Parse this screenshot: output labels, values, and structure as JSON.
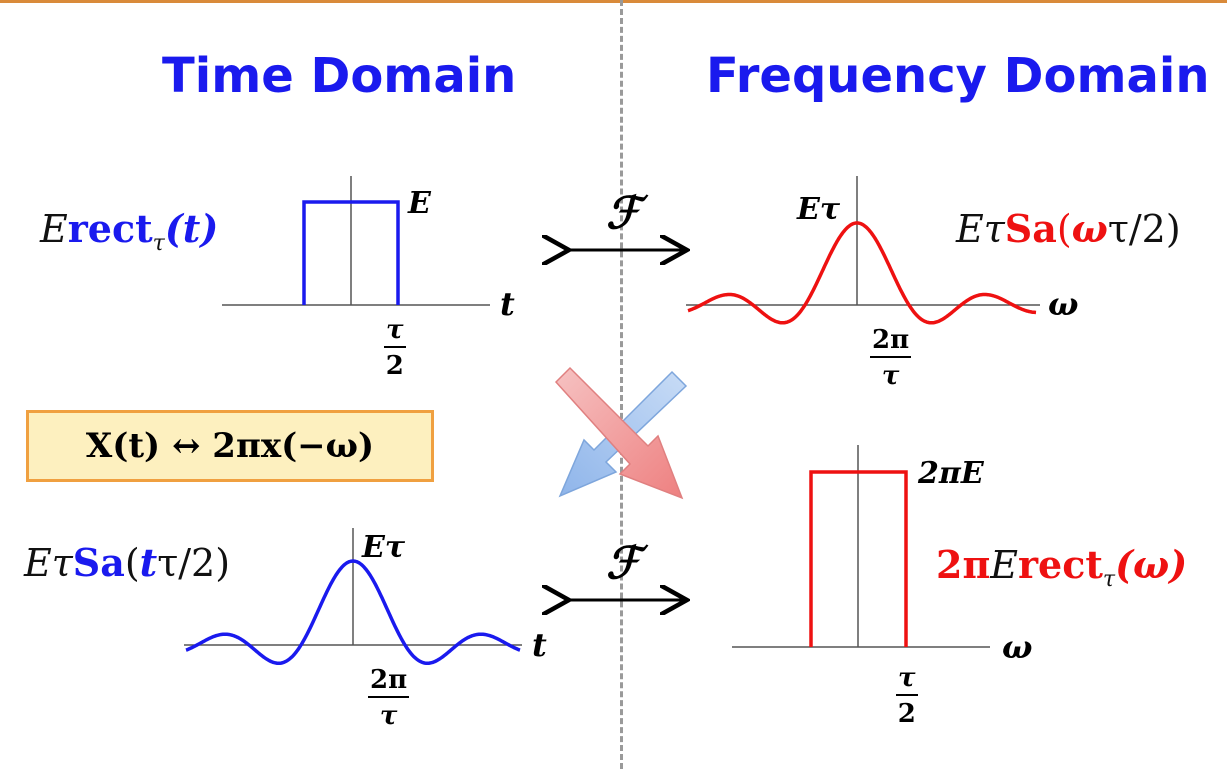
{
  "headings": {
    "time": "Time Domain",
    "frequency": "Frequency Domain"
  },
  "top_left": {
    "func_prefix": "E",
    "func_name": "rect",
    "func_sub": "τ",
    "func_arg": "(t)",
    "peak_label": "E",
    "axis_label": "t",
    "tick_num": "τ",
    "tick_den": "2"
  },
  "top_right": {
    "func_prefix": "Eτ",
    "func_name": "Sa",
    "func_arg_open": "(",
    "func_arg_var": "ω",
    "func_arg_rest": "τ/2)",
    "peak_label": "Eτ",
    "axis_label": "ω",
    "tick_num": "2π",
    "tick_den": "τ"
  },
  "bottom_left": {
    "func_prefix": "Eτ",
    "func_name": "Sa",
    "func_arg_open": "(",
    "func_arg_var": "t",
    "func_arg_rest": "τ/2)",
    "peak_label": "Eτ",
    "axis_label": "t",
    "tick_num": "2π",
    "tick_den": "τ"
  },
  "bottom_right": {
    "func_prefix_bold": "2π",
    "func_prefix": "E",
    "func_name": "rect",
    "func_sub": "τ",
    "func_arg": "(ω)",
    "peak_label": "2πE",
    "axis_label": "ω",
    "tick_num": "τ",
    "tick_den": "2"
  },
  "duality": "X(t) ↔ 2πx(−ω)",
  "transform_symbol": "ℱ",
  "colors": {
    "heading": "#1a1aee",
    "time_curve": "#1a1aee",
    "freq_curve": "#ee1111",
    "dual_box_fill": "#fdf0bf",
    "dual_box_border": "#f0a040",
    "cross_red": "#f2a0a0",
    "cross_blue": "#a8c8f0"
  }
}
